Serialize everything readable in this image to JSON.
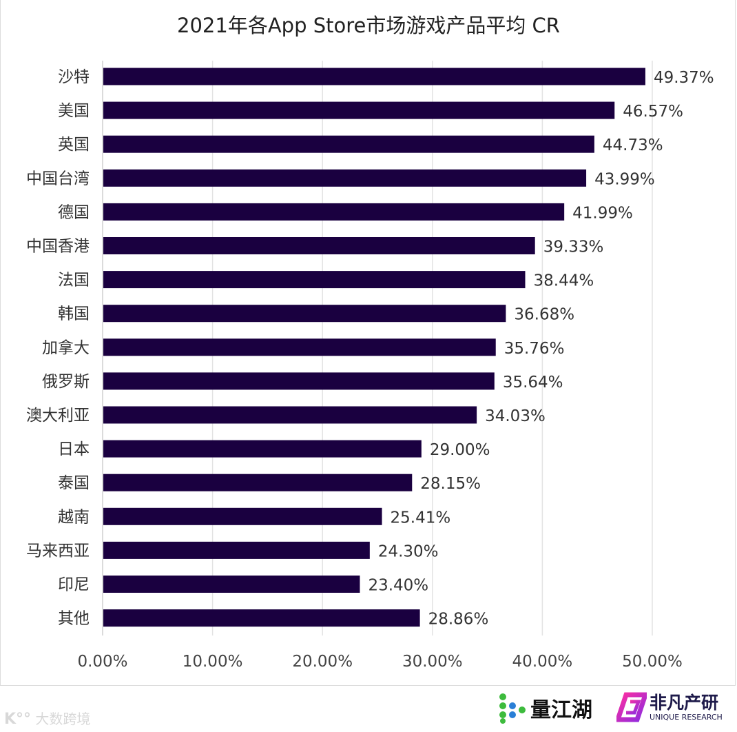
{
  "chart_data": {
    "type": "bar",
    "orientation": "horizontal",
    "title": "2021年各App Store市场游戏产品平均 CR",
    "categories": [
      "沙特",
      "美国",
      "英国",
      "中国台湾",
      "德国",
      "中国香港",
      "法国",
      "韩国",
      "加拿大",
      "俄罗斯",
      "澳大利亚",
      "日本",
      "泰国",
      "越南",
      "马来西亚",
      "印尼",
      "其他"
    ],
    "values": [
      49.37,
      46.57,
      44.73,
      43.99,
      41.99,
      39.33,
      38.44,
      36.68,
      35.76,
      35.64,
      34.03,
      29.0,
      28.15,
      25.41,
      24.3,
      23.4,
      28.86
    ],
    "value_labels": [
      "49.37%",
      "46.57%",
      "44.73%",
      "43.99%",
      "41.99%",
      "39.33%",
      "38.44%",
      "36.68%",
      "35.76%",
      "35.64%",
      "34.03%",
      "29.00%",
      "28.15%",
      "25.41%",
      "24.30%",
      "23.40%",
      "28.86%"
    ],
    "xlim": [
      0,
      50
    ],
    "x_ticks": [
      0,
      10,
      20,
      30,
      40,
      50
    ],
    "x_tick_labels": [
      "0.00%",
      "10.00%",
      "20.00%",
      "30.00%",
      "40.00%",
      "50.00%"
    ],
    "grid": "vertical",
    "bar_color": "#1a0040",
    "xlabel": "",
    "ylabel": ""
  },
  "logos": {
    "watermark": "大数跨境",
    "liangjianghu": "量江湖",
    "feifan": "非凡产研",
    "feifan_sub": "UNIQUE RESEARCH"
  }
}
